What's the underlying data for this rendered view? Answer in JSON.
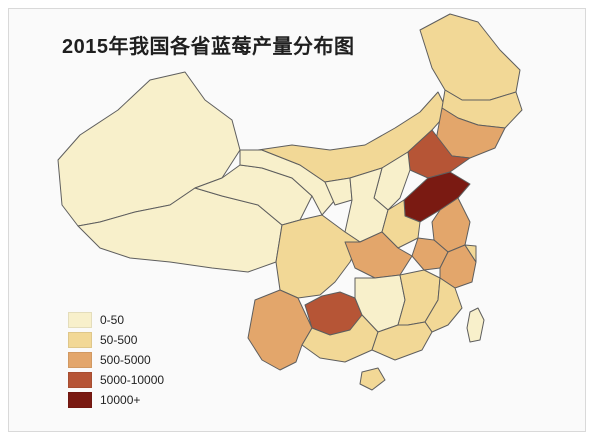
{
  "title": "2015年我国各省蓝莓产量分布图",
  "colors": {
    "c1": "#f8f0cb",
    "c2": "#f2d896",
    "c3": "#e3a66b",
    "c4": "#b65536",
    "c5": "#7a1a12",
    "border": "#5e5e5e"
  },
  "legend": [
    {
      "label": "0-50",
      "color": "#f8f0cb"
    },
    {
      "label": "50-500",
      "color": "#f2d896"
    },
    {
      "label": "500-5000",
      "color": "#e3a66b"
    },
    {
      "label": "5000-10000",
      "color": "#b65536"
    },
    {
      "label": "10000+",
      "color": "#7a1a12"
    }
  ]
}
